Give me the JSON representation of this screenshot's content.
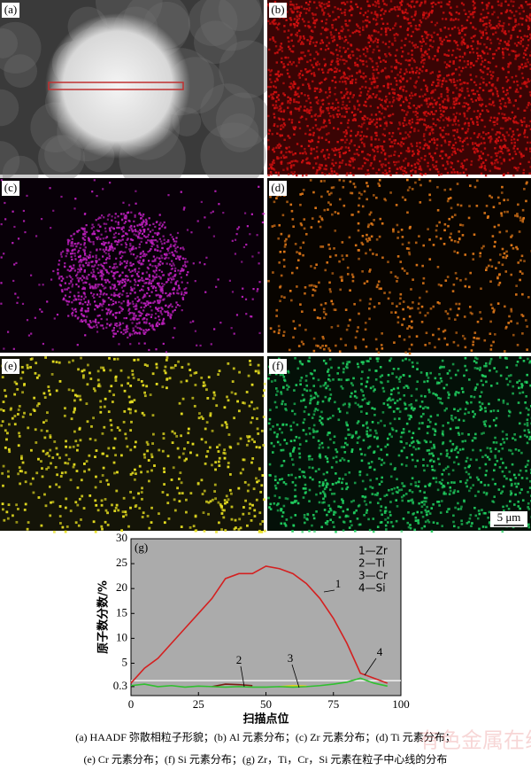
{
  "panels": [
    {
      "label": "(a)"
    },
    {
      "label": "(b)"
    },
    {
      "label": "(c)"
    },
    {
      "label": "(d)"
    },
    {
      "label": "(e)"
    },
    {
      "label": "(f)",
      "scale_bar": "5 μm"
    }
  ],
  "chart_data": {
    "type": "line",
    "panel_label": "(g)",
    "x_label": "扫描点位",
    "y_label": "原子数分数/%",
    "x": [
      0,
      5,
      10,
      15,
      20,
      25,
      30,
      35,
      40,
      45,
      50,
      55,
      60,
      65,
      70,
      75,
      80,
      85,
      90,
      95
    ],
    "series": [
      {
        "name": "1—Zr",
        "color": "#d42020",
        "values": [
          1,
          4,
          6,
          9,
          12,
          15,
          18,
          22,
          23,
          23,
          24.5,
          24,
          23,
          21,
          18,
          14,
          9,
          3,
          2,
          1
        ]
      },
      {
        "name": "2—Ti",
        "color": "#7a1e14",
        "values": [
          null,
          null,
          null,
          null,
          null,
          null,
          0.3,
          0.8,
          0.7,
          0.5,
          null,
          null,
          null,
          null,
          null,
          null,
          null,
          null,
          null,
          null
        ]
      },
      {
        "name": "3—Cr",
        "color": "#e8d020",
        "values": [
          null,
          null,
          null,
          null,
          null,
          null,
          null,
          null,
          null,
          null,
          null,
          0.3,
          0.5,
          0.4,
          null,
          null,
          null,
          null,
          null,
          null
        ]
      },
      {
        "name": "4—Si",
        "color": "#30c030",
        "values": [
          0.5,
          0.8,
          0.3,
          0.5,
          0.2,
          0.4,
          0.3,
          0.2,
          0.3,
          0.2,
          0.2,
          0.3,
          0.2,
          0.3,
          0.5,
          0.8,
          1.2,
          2,
          1,
          0.4
        ]
      }
    ],
    "annotations": [
      "1",
      "2",
      "3",
      "4"
    ],
    "reference_line": 1.5,
    "xlim": [
      0,
      100
    ],
    "xticks": [
      0,
      25,
      50,
      75,
      100
    ],
    "ylim": [
      -1.5,
      30
    ],
    "yticks": [
      0.3,
      5,
      10,
      15,
      20,
      25,
      30
    ]
  },
  "caption": [
    "(a) HAADF 弥散相粒子形貌；(b) Al 元素分布；(c) Zr 元素分布；(d) Ti 元素分布；",
    "(e) Cr 元素分布；(f) Si 元素分布；(g) Zr，Ti，Cr，Si 元素在粒子中心线的分布"
  ],
  "watermark": "有色金属在线"
}
